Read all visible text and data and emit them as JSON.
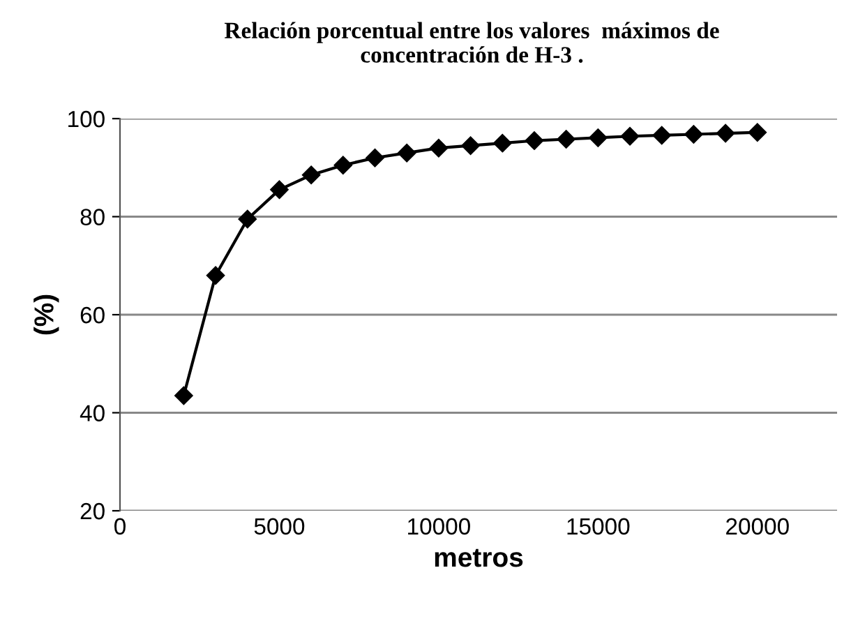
{
  "chart_data": {
    "type": "line",
    "title": "Relación porcentual entre los valores  máximos de\nconcentración de H-3 .",
    "xlabel": "metros",
    "ylabel": "(%)",
    "x": [
      2000,
      3000,
      4000,
      5000,
      6000,
      7000,
      8000,
      9000,
      10000,
      11000,
      12000,
      13000,
      14000,
      15000,
      16000,
      17000,
      18000,
      19000,
      20000
    ],
    "series": [
      {
        "color": "#000000",
        "values": [
          43.5,
          68,
          79.5,
          85.5,
          88.5,
          90.5,
          92,
          93,
          94,
          94.5,
          95,
          95.5,
          95.8,
          96.1,
          96.4,
          96.6,
          96.8,
          97,
          97.2
        ]
      }
    ],
    "xlim": [
      0,
      22500
    ],
    "xticks": [
      0,
      5000,
      10000,
      15000,
      20000
    ],
    "ylim": [
      20,
      100
    ],
    "yticks": [
      20,
      40,
      60,
      80,
      100
    ],
    "grid": "y",
    "marker": "diamond",
    "line_style": "solid"
  }
}
